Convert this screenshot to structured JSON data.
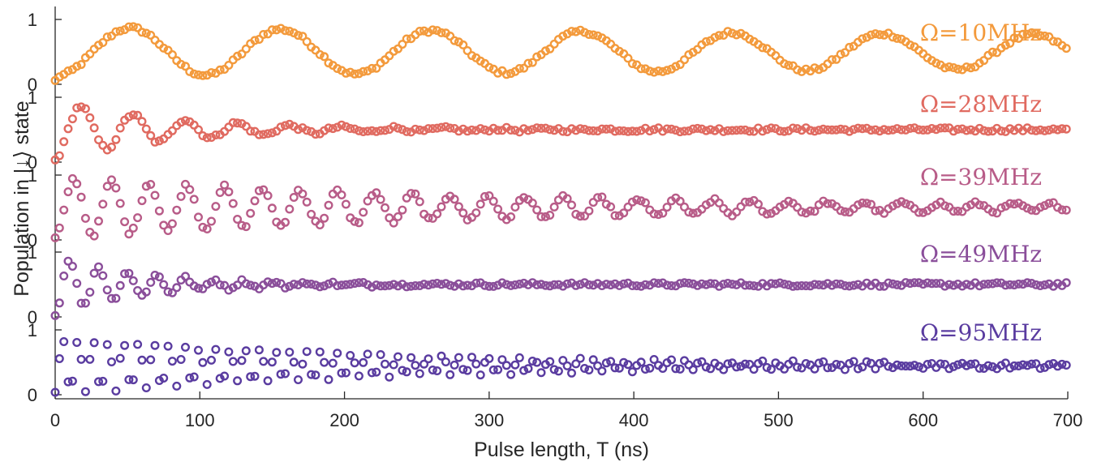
{
  "chart_data": {
    "type": "scatter",
    "xlabel": "Pulse length, T (ns)",
    "ylabel": "Population in |↓⟩ state",
    "xlim": [
      0,
      700
    ],
    "ylim": [
      0,
      1
    ],
    "x_ticks": [
      "0",
      "100",
      "200",
      "300",
      "400",
      "500",
      "600",
      "700"
    ],
    "y_ticks": [
      "0",
      "1"
    ],
    "marker": "open-circle",
    "grid": false,
    "sampling_ns": 3,
    "series": [
      {
        "name": "Ω=10MHz",
        "color": "#F39A3C",
        "omega_mhz": 10,
        "model": {
          "period_ns": 104,
          "amp0": 0.38,
          "t_decay_ns": 1900,
          "offset": 0.5,
          "start": 0.05
        }
      },
      {
        "name": "Ω=28MHz",
        "color": "#E06A60",
        "omega_mhz": 28,
        "model": {
          "period_ns": 36,
          "amp0": 0.45,
          "t_decay_ns": 85,
          "offset": 0.5,
          "start": 0.03
        }
      },
      {
        "name": "Ω=39MHz",
        "color": "#B85C88",
        "omega_mhz": 39,
        "model": {
          "period_ns": 26,
          "amp0": 0.46,
          "t_decay_ns": 320,
          "offset": 0.5,
          "start": 0.02
        }
      },
      {
        "name": "Ω=49MHz",
        "color": "#8A4E9A",
        "omega_mhz": 49,
        "model": {
          "period_ns": 20,
          "amp0": 0.46,
          "t_decay_ns": 60,
          "offset": 0.5,
          "start": 0.02
        }
      },
      {
        "name": "Ω=95MHz",
        "color": "#5A3CA0",
        "omega_mhz": 95,
        "model": {
          "period_ns": 10.5,
          "amp0": 0.45,
          "t_decay_ns": 230,
          "offset": 0.45,
          "start": 0.01
        }
      }
    ]
  }
}
